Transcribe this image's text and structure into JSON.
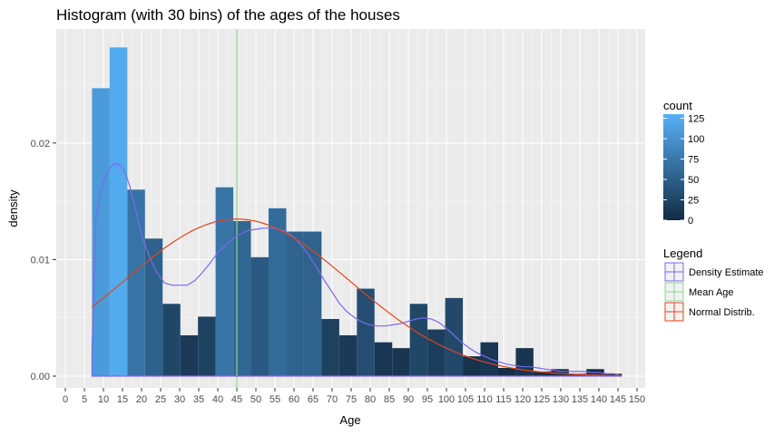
{
  "chart_data": {
    "type": "bar",
    "title": "Histogram (with 30 bins) of the ages of the houses",
    "xlabel": "Age",
    "ylabel": "density",
    "xlim": [
      0,
      150
    ],
    "ylim": [
      0,
      0.0285
    ],
    "x_ticks": [
      0,
      5,
      10,
      15,
      20,
      25,
      30,
      35,
      40,
      45,
      50,
      55,
      60,
      65,
      70,
      75,
      80,
      85,
      90,
      95,
      100,
      105,
      110,
      115,
      120,
      125,
      130,
      135,
      140,
      145,
      150
    ],
    "y_ticks": [
      {
        "value": 0.0,
        "label": "0.00"
      },
      {
        "value": 0.01,
        "label": "0.01"
      },
      {
        "value": 0.02,
        "label": "0.02"
      }
    ],
    "grid": true,
    "bin_width": 4.63,
    "bins": [
      {
        "x_start": 7.0,
        "x_end": 11.63,
        "density": 0.0247,
        "count": 108
      },
      {
        "x_start": 11.63,
        "x_end": 16.27,
        "density": 0.0282,
        "count": 124
      },
      {
        "x_start": 16.27,
        "x_end": 20.9,
        "density": 0.016,
        "count": 70
      },
      {
        "x_start": 20.9,
        "x_end": 25.53,
        "density": 0.0118,
        "count": 52
      },
      {
        "x_start": 25.53,
        "x_end": 30.17,
        "density": 0.0062,
        "count": 27
      },
      {
        "x_start": 30.17,
        "x_end": 34.8,
        "density": 0.0035,
        "count": 15
      },
      {
        "x_start": 34.8,
        "x_end": 39.43,
        "density": 0.0051,
        "count": 22
      },
      {
        "x_start": 39.43,
        "x_end": 44.07,
        "density": 0.0162,
        "count": 71
      },
      {
        "x_start": 44.07,
        "x_end": 48.7,
        "density": 0.0133,
        "count": 58
      },
      {
        "x_start": 48.7,
        "x_end": 53.33,
        "density": 0.0102,
        "count": 45
      },
      {
        "x_start": 53.33,
        "x_end": 57.97,
        "density": 0.0144,
        "count": 63
      },
      {
        "x_start": 57.97,
        "x_end": 62.6,
        "density": 0.0124,
        "count": 54
      },
      {
        "x_start": 62.6,
        "x_end": 67.23,
        "density": 0.0124,
        "count": 54
      },
      {
        "x_start": 67.23,
        "x_end": 71.87,
        "density": 0.0049,
        "count": 21
      },
      {
        "x_start": 71.87,
        "x_end": 76.5,
        "density": 0.0035,
        "count": 15
      },
      {
        "x_start": 76.5,
        "x_end": 81.13,
        "density": 0.0075,
        "count": 33
      },
      {
        "x_start": 81.13,
        "x_end": 85.77,
        "density": 0.0029,
        "count": 12
      },
      {
        "x_start": 85.77,
        "x_end": 90.4,
        "density": 0.0024,
        "count": 10
      },
      {
        "x_start": 90.4,
        "x_end": 95.03,
        "density": 0.0062,
        "count": 27
      },
      {
        "x_start": 95.03,
        "x_end": 99.67,
        "density": 0.004,
        "count": 17
      },
      {
        "x_start": 99.67,
        "x_end": 104.3,
        "density": 0.0067,
        "count": 29
      },
      {
        "x_start": 104.3,
        "x_end": 108.93,
        "density": 0.0017,
        "count": 7
      },
      {
        "x_start": 108.93,
        "x_end": 113.57,
        "density": 0.0029,
        "count": 12
      },
      {
        "x_start": 113.57,
        "x_end": 118.2,
        "density": 0.0007,
        "count": 3
      },
      {
        "x_start": 118.2,
        "x_end": 122.83,
        "density": 0.0024,
        "count": 10
      },
      {
        "x_start": 122.83,
        "x_end": 127.47,
        "density": 0.0004,
        "count": 2
      },
      {
        "x_start": 127.47,
        "x_end": 132.1,
        "density": 0.0006,
        "count": 2
      },
      {
        "x_start": 132.1,
        "x_end": 136.73,
        "density": 0.0002,
        "count": 1
      },
      {
        "x_start": 136.73,
        "x_end": 141.37,
        "density": 0.0006,
        "count": 2
      },
      {
        "x_start": 141.37,
        "x_end": 146.0,
        "density": 0.0002,
        "count": 1
      }
    ],
    "mean_age": 45.0,
    "density_curve": [
      [
        7,
        0.0022
      ],
      [
        8,
        0.0135
      ],
      [
        9,
        0.0152
      ],
      [
        10,
        0.0166
      ],
      [
        11,
        0.0175
      ],
      [
        12,
        0.018
      ],
      [
        13,
        0.0182
      ],
      [
        14,
        0.0182
      ],
      [
        15,
        0.0179
      ],
      [
        16,
        0.0172
      ],
      [
        17,
        0.0162
      ],
      [
        18,
        0.0149
      ],
      [
        19,
        0.0135
      ],
      [
        20,
        0.0121
      ],
      [
        22,
        0.0103
      ],
      [
        24,
        0.0089
      ],
      [
        26,
        0.008
      ],
      [
        28,
        0.0078
      ],
      [
        30,
        0.0078
      ],
      [
        32,
        0.0078
      ],
      [
        34,
        0.0082
      ],
      [
        36,
        0.0089
      ],
      [
        38,
        0.0097
      ],
      [
        40,
        0.0106
      ],
      [
        42,
        0.0112
      ],
      [
        44,
        0.0118
      ],
      [
        46,
        0.0122
      ],
      [
        48,
        0.0125
      ],
      [
        50,
        0.0126
      ],
      [
        52,
        0.0127
      ],
      [
        54,
        0.0127
      ],
      [
        56,
        0.0126
      ],
      [
        58,
        0.0124
      ],
      [
        60,
        0.0119
      ],
      [
        62,
        0.0112
      ],
      [
        64,
        0.0103
      ],
      [
        66,
        0.0093
      ],
      [
        68,
        0.0082
      ],
      [
        70,
        0.0072
      ],
      [
        72,
        0.0062
      ],
      [
        74,
        0.0055
      ],
      [
        76,
        0.005
      ],
      [
        78,
        0.0046
      ],
      [
        80,
        0.0044
      ],
      [
        82,
        0.0043
      ],
      [
        84,
        0.0043
      ],
      [
        86,
        0.0044
      ],
      [
        88,
        0.0045
      ],
      [
        90,
        0.0047
      ],
      [
        92,
        0.0049
      ],
      [
        94,
        0.005
      ],
      [
        96,
        0.0049
      ],
      [
        98,
        0.0046
      ],
      [
        100,
        0.0041
      ],
      [
        102,
        0.0035
      ],
      [
        104,
        0.0029
      ],
      [
        106,
        0.0024
      ],
      [
        108,
        0.002
      ],
      [
        110,
        0.0017
      ],
      [
        112,
        0.0014
      ],
      [
        114,
        0.0012
      ],
      [
        116,
        0.001
      ],
      [
        118,
        0.0009
      ],
      [
        120,
        0.0008
      ],
      [
        122,
        0.0008
      ],
      [
        124,
        0.0007
      ],
      [
        126,
        0.0006
      ],
      [
        128,
        0.0005
      ],
      [
        130,
        0.0004
      ],
      [
        132,
        0.0004
      ],
      [
        134,
        0.0004
      ],
      [
        136,
        0.0004
      ],
      [
        138,
        0.0003
      ],
      [
        140,
        0.0003
      ],
      [
        142,
        0.0002
      ],
      [
        144,
        0.0002
      ],
      [
        146,
        0.0
      ]
    ],
    "normal_mean": 45.0,
    "normal_sd": 29.6,
    "normal_range": [
      7,
      146
    ],
    "colorbar": {
      "title": "count",
      "ticks": [
        0,
        25,
        50,
        75,
        100,
        125
      ],
      "min": 0,
      "max": 130,
      "low_color": "#132b43",
      "high_color": "#56b1f7"
    },
    "legend": {
      "title": "Legend",
      "placement": "right",
      "items": [
        {
          "label": "Density Estimate",
          "color": "#7b68ee"
        },
        {
          "label": "Mean Age",
          "color": "#8fd68f"
        },
        {
          "label": "Normal Distrib.",
          "color": "#e0451b"
        }
      ]
    },
    "panel_bg": "#ebebeb"
  }
}
